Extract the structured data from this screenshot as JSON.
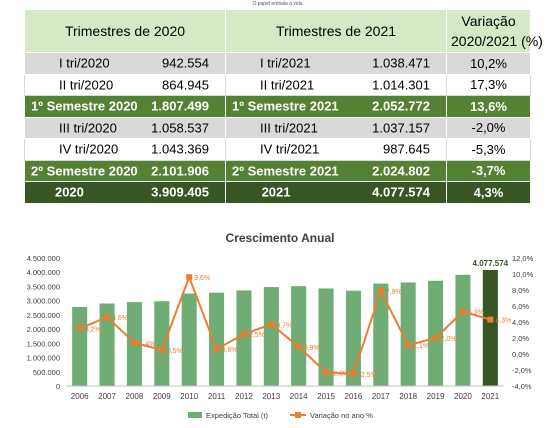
{
  "tagline": "O papel embala a vida",
  "table": {
    "headers": {
      "y2020": "Trimestres de 2020",
      "y2021": "Trimestres de 2021",
      "var_line1": "Variação",
      "var_line2": "2020/2021 (%)"
    },
    "rows": [
      {
        "style": "gray",
        "l1": "I tri/2020",
        "v1": "942.554",
        "l2": "I tri/2021",
        "v2": "1.038.471",
        "var": "10,2%"
      },
      {
        "style": "white",
        "l1": "II tri/2020",
        "v1": "864.945",
        "l2": "II tri/2021",
        "v2": "1.014.301",
        "var": "17,3%"
      },
      {
        "style": "green",
        "l1": "1º Semestre 2020",
        "v1": "1.807.499",
        "l2": "1º Semestre 2021",
        "v2": "2.052.772",
        "var": "13,6%"
      },
      {
        "style": "gray",
        "l1": "III tri/2020",
        "v1": "1.058.537",
        "l2": "III tri/2021",
        "v2": "1.037.157",
        "var": "-2,0%"
      },
      {
        "style": "white",
        "l1": "IV tri/2020",
        "v1": "1.043.369",
        "l2": "IV tri/2021",
        "v2": "987.645",
        "var": "-5,3%"
      },
      {
        "style": "green",
        "l1": "2º Semestre 2020",
        "v1": "2.101.906",
        "l2": "2º Semestre 2021",
        "v2": "2.024.802",
        "var": "-3,7%"
      },
      {
        "style": "dark",
        "l1": "2020",
        "v1": "3.909.405",
        "l2": "2021",
        "v2": "4.077.574",
        "var": "4,3%"
      }
    ]
  },
  "chart_data": {
    "type": "bar",
    "title": "Crescimento Anual",
    "categories": [
      "2006",
      "2007",
      "2008",
      "2009",
      "2010",
      "2011",
      "2012",
      "2013",
      "2014",
      "2015",
      "2016",
      "2017",
      "2018",
      "2019",
      "2020",
      "2021"
    ],
    "series": [
      {
        "name": "Expedição Total (t)",
        "type": "bar",
        "axis": "left",
        "values": [
          2780000,
          2900000,
          2950000,
          2980000,
          3250000,
          3280000,
          3360000,
          3480000,
          3510000,
          3430000,
          3350000,
          3600000,
          3640000,
          3700000,
          3909405,
          4077574
        ],
        "color": "#70ad74",
        "last_color": "#375623"
      },
      {
        "name": "Variação no ano %",
        "type": "line",
        "axis": "right",
        "values": [
          3.2,
          4.6,
          1.4,
          0.5,
          9.6,
          0.6,
          2.5,
          3.7,
          0.9,
          -2.3,
          -2.5,
          7.9,
          1.1,
          2.0,
          5.3,
          4.3
        ],
        "labels": [
          "3,2%",
          "4,6%",
          "1,4%",
          "0,5%",
          "9,6%",
          "0,6%",
          "2,5%",
          "3,7%",
          "0,9%",
          "-2,3%",
          "-2,5%",
          "7,9%",
          "1,1%",
          "2,0%",
          "5,3%",
          "4,3%"
        ],
        "color": "#ed7d31"
      }
    ],
    "last_bar_label": "4.077.574",
    "ylim_left": [
      0,
      4500000
    ],
    "yticks_left": [
      "0",
      "500.000",
      "1.000.000",
      "1.500.000",
      "2.000.000",
      "2.500.000",
      "3.000.000",
      "3.500.000",
      "4.000.000",
      "4.500.000"
    ],
    "ylim_right": [
      -4,
      12
    ],
    "yticks_right": [
      "-4,0%",
      "-2,0%",
      "0,0%",
      "2,0%",
      "4,0%",
      "6,0%",
      "8,0%",
      "10,0%",
      "12,0%"
    ],
    "grid": false,
    "legend_position": "bottom"
  }
}
